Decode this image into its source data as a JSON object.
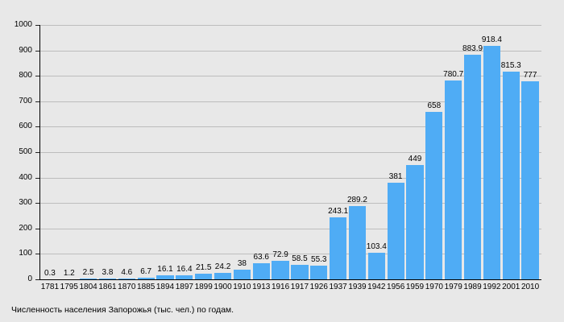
{
  "chart_data": {
    "type": "bar",
    "title": "Численность населения Запорожья (тыс. чел.) по годам.",
    "categories": [
      "1781",
      "1795",
      "1804",
      "1861",
      "1870",
      "1885",
      "1894",
      "1897",
      "1899",
      "1900",
      "1910",
      "1913",
      "1916",
      "1917",
      "1926",
      "1937",
      "1939",
      "1942",
      "1956",
      "1959",
      "1970",
      "1979",
      "1989",
      "1992",
      "2001",
      "2010"
    ],
    "values": [
      0.3,
      1.2,
      2.5,
      3.8,
      4.6,
      6.7,
      16.1,
      16.4,
      21.5,
      24.2,
      38,
      63.6,
      72.9,
      58.5,
      55.3,
      243.1,
      289.2,
      103.4,
      381,
      449,
      658,
      780.7,
      883.9,
      918.4,
      815.3,
      777
    ],
    "value_labels": [
      "0.3",
      "1.2",
      "2.5",
      "3.8",
      "4.6",
      "6.7",
      "16.1",
      "16.4",
      "21.5",
      "24.2",
      "38",
      "63.6",
      "72.9",
      "58.5",
      "55.3",
      "243.1",
      "289.2",
      "103.4",
      "381",
      "449",
      "658",
      "780.7",
      "883.9",
      "918.4",
      "815.3",
      "777"
    ],
    "xlabel": "",
    "ylabel": "",
    "ylim": [
      0,
      1000
    ],
    "yticks": [
      0,
      100,
      200,
      300,
      400,
      500,
      600,
      700,
      800,
      900,
      1000
    ],
    "grid": true,
    "legend": false
  },
  "colors": {
    "background": "#E8E8E8",
    "bar": "#4FACF5",
    "gridline": "#BDBDBD",
    "axis": "#000000",
    "text": "#000000"
  }
}
